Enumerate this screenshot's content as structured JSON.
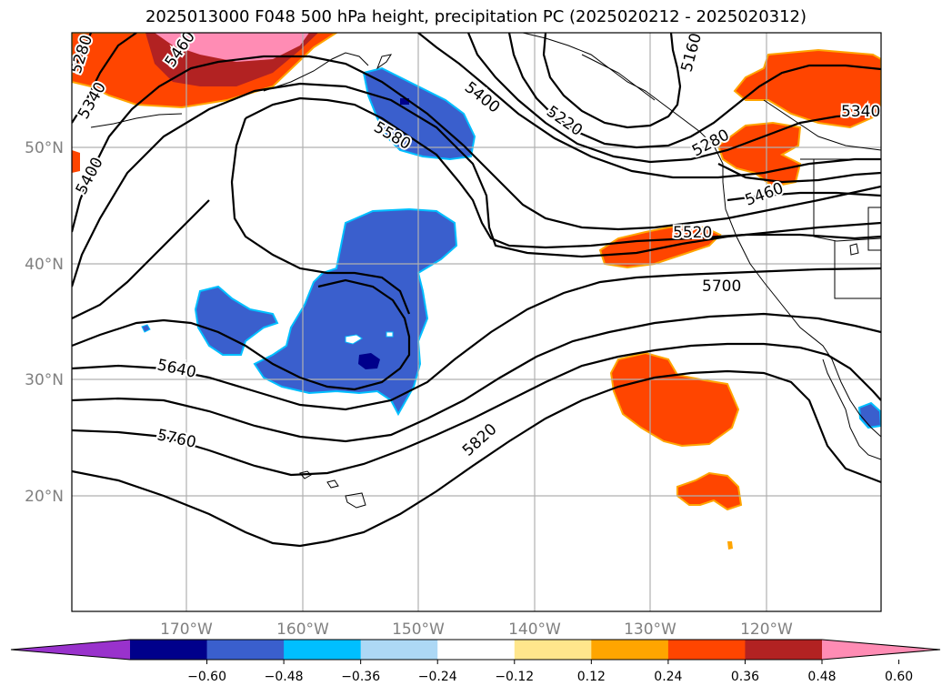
{
  "title": "2025013000 F048 500 hPa height, precipitation PC (2025020212 - 2025020312)",
  "lat_labels": [
    "50°N",
    "40°N",
    "30°N",
    "20°N"
  ],
  "lon_labels": [
    "170°W",
    "160°W",
    "150°W",
    "140°W",
    "130°W",
    "120°W"
  ],
  "contour_labels": [
    "5280",
    "5340",
    "5460",
    "5400",
    "5400",
    "5580",
    "5220",
    "5160",
    "5280",
    "5340",
    "5460",
    "5520",
    "5700",
    "5640",
    "5760",
    "5820"
  ],
  "colorbar": {
    "ticks": [
      "−0.60",
      "−0.48",
      "−0.36",
      "−0.24",
      "−0.12",
      "0.12",
      "0.24",
      "0.36",
      "0.48",
      "0.60"
    ],
    "colors": [
      "#9932cc",
      "#00008b",
      "#3a5fcd",
      "#00bfff",
      "#add8f5",
      "#ffffff",
      "#ffe68c",
      "#ffa500",
      "#ff4500",
      "#b22222",
      "#ff8cb4"
    ]
  }
}
